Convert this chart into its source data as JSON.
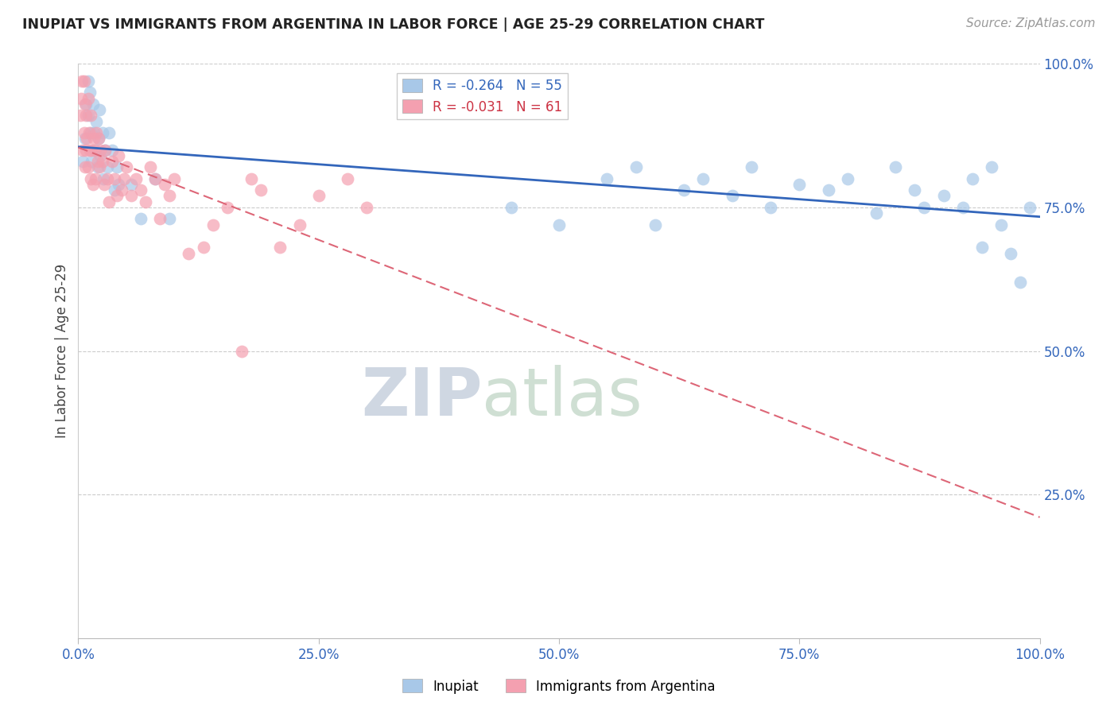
{
  "title": "INUPIAT VS IMMIGRANTS FROM ARGENTINA IN LABOR FORCE | AGE 25-29 CORRELATION CHART",
  "source": "Source: ZipAtlas.com",
  "ylabel": "In Labor Force | Age 25-29",
  "xlim": [
    0.0,
    1.0
  ],
  "ylim": [
    0.0,
    1.0
  ],
  "xtick_labels": [
    "0.0%",
    "25.0%",
    "50.0%",
    "75.0%",
    "100.0%"
  ],
  "xtick_positions": [
    0.0,
    0.25,
    0.5,
    0.75,
    1.0
  ],
  "ytick_labels": [
    "25.0%",
    "50.0%",
    "75.0%",
    "100.0%"
  ],
  "ytick_positions": [
    0.25,
    0.5,
    0.75,
    1.0
  ],
  "inupiat_R": -0.264,
  "inupiat_N": 55,
  "argentina_R": -0.031,
  "argentina_N": 61,
  "inupiat_color": "#a8c8e8",
  "argentina_color": "#f4a0b0",
  "inupiat_line_color": "#3366bb",
  "argentina_line_color": "#dd6677",
  "inupiat_x": [
    0.005,
    0.007,
    0.008,
    0.01,
    0.01,
    0.012,
    0.013,
    0.014,
    0.015,
    0.016,
    0.018,
    0.019,
    0.02,
    0.021,
    0.022,
    0.023,
    0.025,
    0.026,
    0.028,
    0.03,
    0.032,
    0.035,
    0.038,
    0.04,
    0.042,
    0.055,
    0.065,
    0.08,
    0.095,
    0.45,
    0.5,
    0.55,
    0.58,
    0.6,
    0.63,
    0.65,
    0.68,
    0.7,
    0.72,
    0.75,
    0.78,
    0.8,
    0.83,
    0.85,
    0.87,
    0.88,
    0.9,
    0.92,
    0.93,
    0.94,
    0.95,
    0.96,
    0.97,
    0.98,
    0.99
  ],
  "inupiat_y": [
    0.83,
    0.87,
    0.93,
    0.97,
    0.91,
    0.95,
    0.88,
    0.83,
    0.93,
    0.88,
    0.85,
    0.9,
    0.82,
    0.87,
    0.92,
    0.84,
    0.88,
    0.8,
    0.85,
    0.82,
    0.88,
    0.85,
    0.78,
    0.82,
    0.79,
    0.79,
    0.73,
    0.8,
    0.73,
    0.75,
    0.72,
    0.8,
    0.82,
    0.72,
    0.78,
    0.8,
    0.77,
    0.82,
    0.75,
    0.79,
    0.78,
    0.8,
    0.74,
    0.82,
    0.78,
    0.75,
    0.77,
    0.75,
    0.8,
    0.68,
    0.82,
    0.72,
    0.67,
    0.62,
    0.75
  ],
  "argentina_x": [
    0.002,
    0.003,
    0.004,
    0.005,
    0.006,
    0.006,
    0.007,
    0.007,
    0.008,
    0.008,
    0.009,
    0.01,
    0.01,
    0.011,
    0.012,
    0.013,
    0.013,
    0.014,
    0.015,
    0.016,
    0.017,
    0.018,
    0.019,
    0.02,
    0.021,
    0.022,
    0.023,
    0.025,
    0.027,
    0.028,
    0.03,
    0.032,
    0.035,
    0.038,
    0.04,
    0.042,
    0.045,
    0.048,
    0.05,
    0.055,
    0.06,
    0.065,
    0.07,
    0.075,
    0.08,
    0.085,
    0.09,
    0.095,
    0.1,
    0.115,
    0.13,
    0.14,
    0.155,
    0.17,
    0.18,
    0.19,
    0.21,
    0.23,
    0.25,
    0.28,
    0.3
  ],
  "argentina_y": [
    0.91,
    0.94,
    0.97,
    0.85,
    0.88,
    0.97,
    0.82,
    0.93,
    0.85,
    0.91,
    0.87,
    0.94,
    0.82,
    0.88,
    0.85,
    0.8,
    0.91,
    0.85,
    0.79,
    0.87,
    0.85,
    0.8,
    0.88,
    0.83,
    0.87,
    0.82,
    0.85,
    0.83,
    0.79,
    0.85,
    0.8,
    0.76,
    0.83,
    0.8,
    0.77,
    0.84,
    0.78,
    0.8,
    0.82,
    0.77,
    0.8,
    0.78,
    0.76,
    0.82,
    0.8,
    0.73,
    0.79,
    0.77,
    0.8,
    0.67,
    0.68,
    0.72,
    0.75,
    0.5,
    0.8,
    0.78,
    0.68,
    0.72,
    0.77,
    0.8,
    0.75
  ]
}
